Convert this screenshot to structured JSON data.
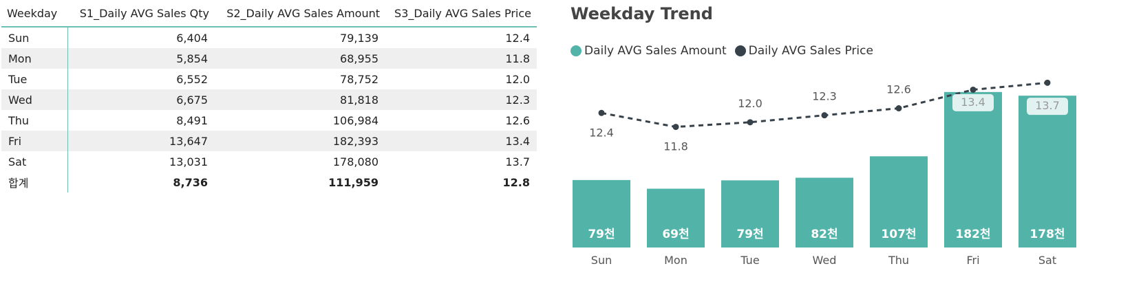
{
  "table": {
    "headers": [
      "Weekday",
      "S1_Daily AVG Sales Qty",
      "S2_Daily AVG Sales Amount",
      "S3_Daily AVG Sales Price"
    ],
    "rows": [
      [
        "Sun",
        "6,404",
        "79,139",
        "12.4"
      ],
      [
        "Mon",
        "5,854",
        "68,955",
        "11.8"
      ],
      [
        "Tue",
        "6,552",
        "78,752",
        "12.0"
      ],
      [
        "Wed",
        "6,675",
        "81,818",
        "12.3"
      ],
      [
        "Thu",
        "8,491",
        "106,984",
        "12.6"
      ],
      [
        "Fri",
        "13,647",
        "182,393",
        "13.4"
      ],
      [
        "Sat",
        "13,031",
        "178,080",
        "13.7"
      ]
    ],
    "total": [
      "합계",
      "8,736",
      "111,959",
      "12.8"
    ]
  },
  "chart_title": "Weekday Trend",
  "colors": {
    "bar": "#52b3a8",
    "line": "#37414a",
    "header_rule": "#6cc0b3",
    "band": "#efefef"
  },
  "chart_data": {
    "type": "bar",
    "categories": [
      "Sun",
      "Mon",
      "Tue",
      "Wed",
      "Thu",
      "Fri",
      "Sat"
    ],
    "series": [
      {
        "name": "Daily AVG Sales Amount",
        "type": "bar",
        "values": [
          79139,
          68955,
          78752,
          81818,
          106984,
          182393,
          178080
        ],
        "labels": [
          "79천",
          "69천",
          "79천",
          "82천",
          "107천",
          "182천",
          "178천"
        ]
      },
      {
        "name": "Daily AVG Sales Price",
        "type": "line",
        "style": "dashed",
        "values": [
          12.4,
          11.8,
          12.0,
          12.3,
          12.6,
          13.4,
          13.7
        ],
        "labels": [
          "12.4",
          "11.8",
          "12.0",
          "12.3",
          "12.6",
          "13.4",
          "13.7"
        ]
      }
    ],
    "legend": "top-left",
    "grid": false
  }
}
